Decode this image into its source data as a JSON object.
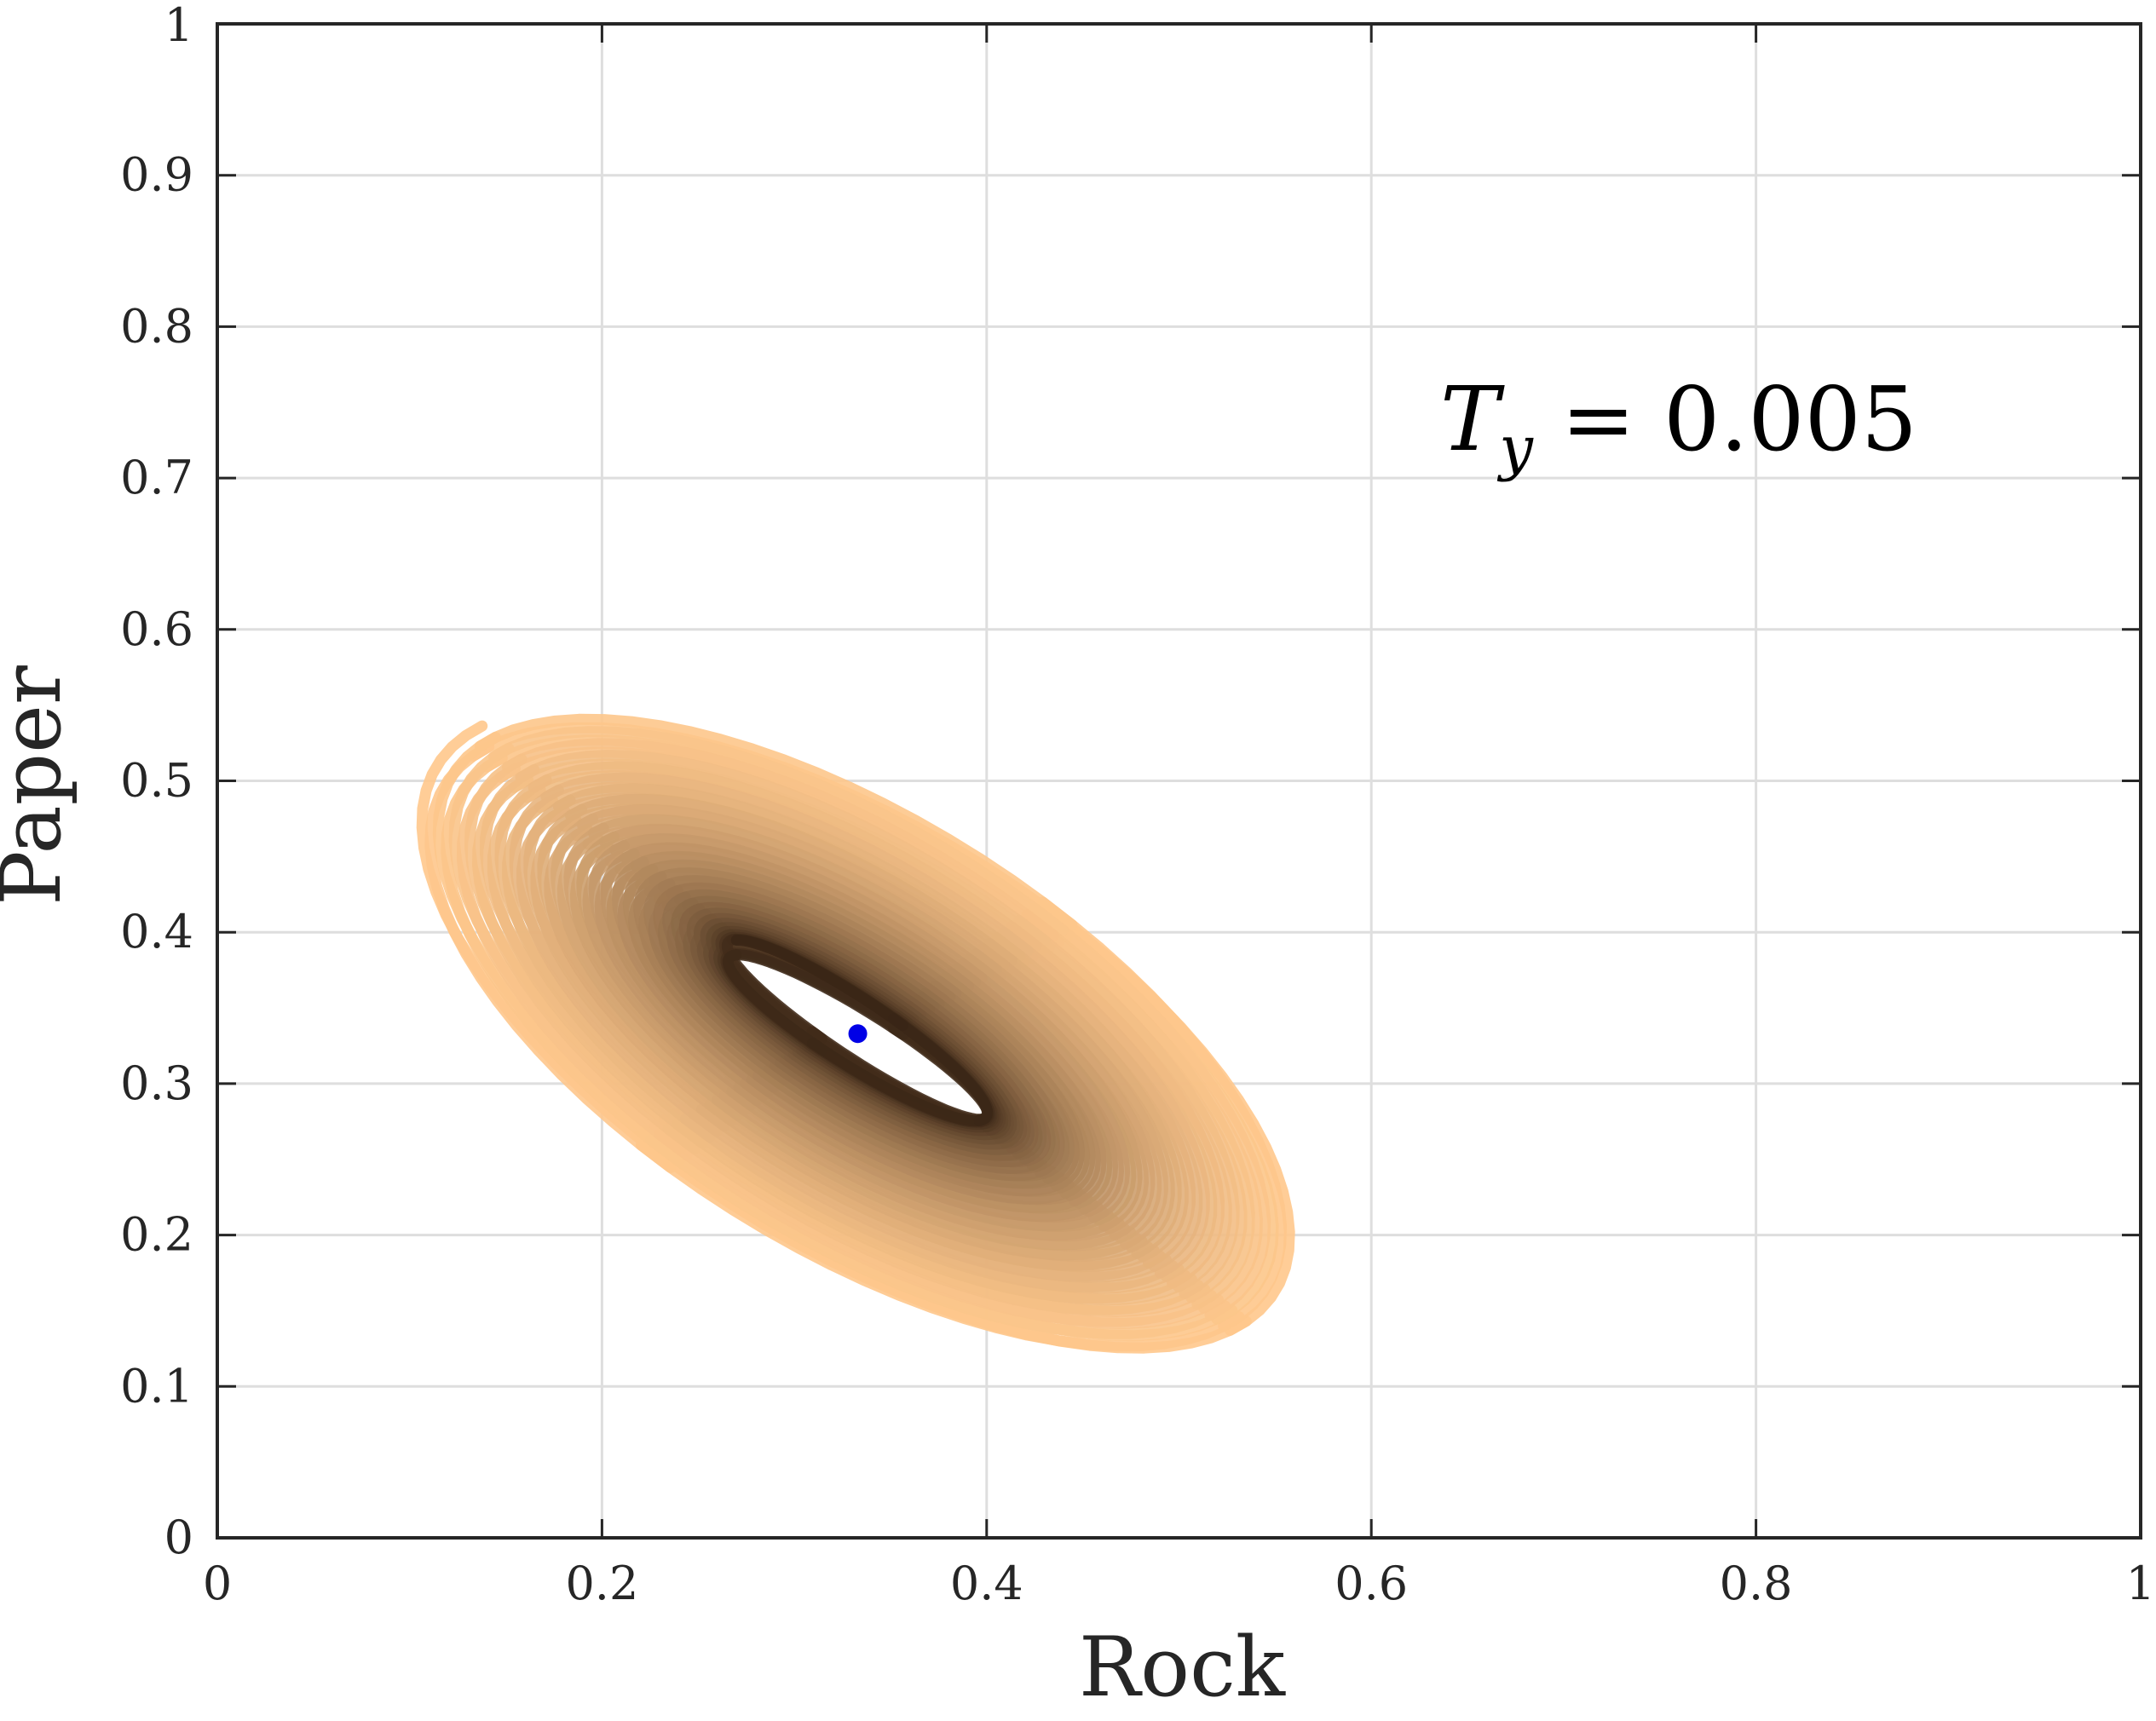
{
  "chart_data": {
    "type": "line",
    "title": "",
    "xlabel": "Rock",
    "ylabel": "Paper",
    "xlim": [
      0,
      1
    ],
    "ylim": [
      0,
      1
    ],
    "grid": true,
    "xticks": [
      "0",
      "0.2",
      "0.4",
      "0.6",
      "0.8",
      "1"
    ],
    "yticks": [
      "0",
      "0.1",
      "0.2",
      "0.3",
      "0.4",
      "0.5",
      "0.6",
      "0.7",
      "0.8",
      "0.9",
      "1"
    ],
    "annotation": "T_y = 0.005",
    "annotation_main": "T",
    "annotation_sub": "y",
    "annotation_rest": " = 0.005",
    "series": [
      {
        "kind": "trajectory",
        "start": [
          0.2,
          0.59
        ],
        "end": [
          0.333,
          0.333
        ],
        "description_ranges": {
          "x": [
            0.1,
            0.62
          ],
          "y": [
            0.09,
            0.65
          ]
        },
        "start_color": "#ffc88c",
        "end_color": "#3a2616"
      }
    ],
    "equilibrium_point": {
      "x": 0.333,
      "y": 0.333,
      "color": "#0000e6"
    }
  }
}
